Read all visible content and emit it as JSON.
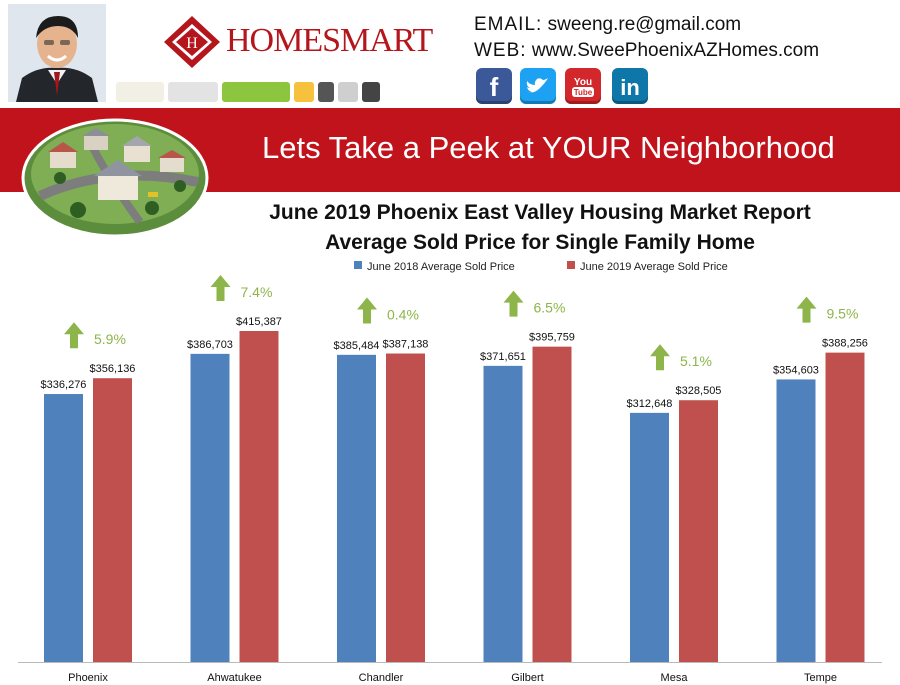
{
  "header": {
    "brand": "HOMESMART",
    "email_label": "EMAIL:",
    "email": "sweeng.re@gmail.com",
    "web_label": "WEB:",
    "website": "www.SweePhoenixAZHomes.com",
    "social_icons": [
      "facebook-icon",
      "twitter-icon",
      "youtube-icon",
      "linkedin-icon"
    ],
    "certification_badges": [
      "graduate-realtor-institute-badge",
      "abr-badge",
      "e-pro-badge",
      "seniors-real-estate-specialist-badge",
      "realtor-badge",
      "mls-badge",
      "equal-housing-opportunity-badge"
    ]
  },
  "banner": {
    "title": "Lets Take a Peek at YOUR Neighborhood"
  },
  "chart_data": {
    "type": "bar",
    "title": "June 2019 Phoenix East Valley Housing Market Report",
    "subtitle": "Average Sold Price for Single Family Home",
    "xlabel": "",
    "ylabel": "",
    "categories": [
      "Phoenix",
      "Ahwatukee",
      "Chandler",
      "Gilbert",
      "Mesa",
      "Tempe"
    ],
    "series": [
      {
        "name": "June 2018 Average Sold Price",
        "color": "#4f81bd",
        "values": [
          336276,
          386703,
          385484,
          371651,
          312648,
          354603
        ],
        "labels": [
          "$336,276",
          "$386,703",
          "$385,484",
          "$371,651",
          "$312,648",
          "$354,603"
        ]
      },
      {
        "name": "June 2019 Average Sold Price",
        "color": "#c0504d",
        "values": [
          356136,
          415387,
          387138,
          395759,
          328505,
          388256
        ],
        "labels": [
          "$356,136",
          "$415,387",
          "$387,138",
          "$395,759",
          "$328,505",
          "$388,256"
        ]
      }
    ],
    "annotations": [
      "5.9%",
      "7.4%",
      "0.4%",
      "6.5%",
      "5.1%",
      "9.5%"
    ],
    "annotation_color": "#8db54a",
    "ylim": [
      0,
      450000
    ],
    "grid": false,
    "legend": "top-center"
  }
}
